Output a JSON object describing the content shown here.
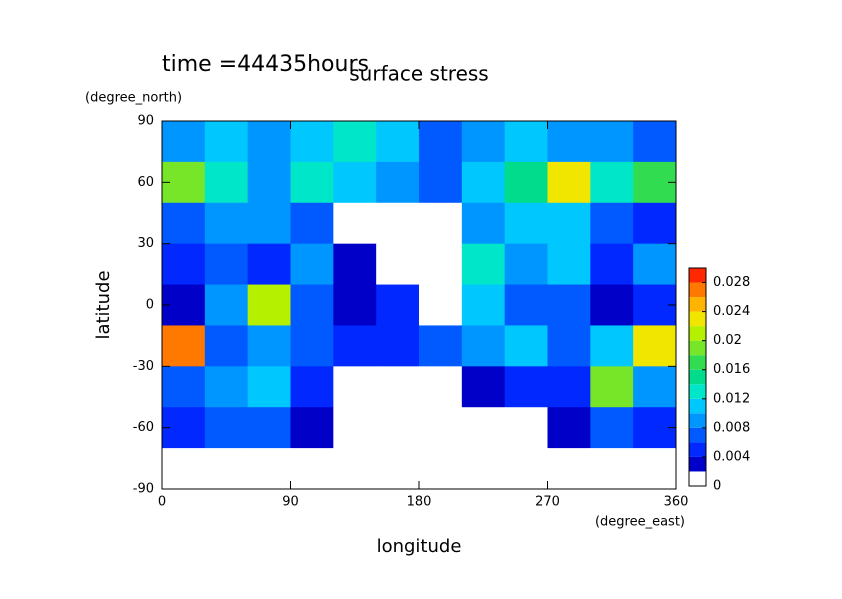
{
  "chart_data": {
    "type": "contour",
    "time_label": "time =44435hours",
    "title": "surface stress",
    "y_unit": "(degree_north)",
    "x_unit": "(degree_east)",
    "xlabel": "longitude",
    "ylabel": "latitude",
    "xlim": [
      0,
      360
    ],
    "ylim": [
      -90,
      90
    ],
    "xticks": [
      0,
      90,
      180,
      270,
      360
    ],
    "yticks": [
      -90,
      -60,
      -30,
      0,
      30,
      60,
      90
    ],
    "x": [
      15,
      45,
      75,
      105,
      135,
      165,
      195,
      225,
      255,
      285,
      315,
      345
    ],
    "y": [
      80,
      60,
      40,
      20,
      0,
      -20,
      -40,
      -60,
      -80
    ],
    "z": [
      [
        0.008,
        0.01,
        0.008,
        0.01,
        0.012,
        0.01,
        0.006,
        0.008,
        0.01,
        0.008,
        0.008,
        0.006
      ],
      [
        0.018,
        0.012,
        0.008,
        0.012,
        0.01,
        0.008,
        0.006,
        0.01,
        0.014,
        0.022,
        0.012,
        0.016
      ],
      [
        0.006,
        0.008,
        0.008,
        0.006,
        0,
        0,
        0,
        0.008,
        0.01,
        0.01,
        0.006,
        0.004
      ],
      [
        0.004,
        0.006,
        0.004,
        0.008,
        0.002,
        0,
        0,
        0.012,
        0.008,
        0.01,
        0.004,
        0.008
      ],
      [
        0.002,
        0.008,
        0.02,
        0.006,
        0.002,
        0.004,
        0,
        0.01,
        0.006,
        0.006,
        0.002,
        0.004
      ],
      [
        0.026,
        0.006,
        0.008,
        0.006,
        0.004,
        0.004,
        0.006,
        0.008,
        0.01,
        0.006,
        0.01,
        0.022
      ],
      [
        0.006,
        0.008,
        0.01,
        0.004,
        0,
        0,
        0,
        0.002,
        0.004,
        0.004,
        0.018,
        0.008
      ],
      [
        0.004,
        0.006,
        0.006,
        0.002,
        0,
        0,
        0,
        0,
        0,
        0.002,
        0.006,
        0.004
      ],
      [
        0,
        0,
        0,
        0,
        0,
        0,
        0,
        0,
        0,
        0,
        0,
        0
      ]
    ],
    "levels": [
      0,
      0.002,
      0.004,
      0.006,
      0.008,
      0.01,
      0.012,
      0.014,
      0.016,
      0.018,
      0.02,
      0.022,
      0.024,
      0.026,
      0.028,
      0.03
    ],
    "colors": [
      "#ffffff",
      "#0000c8",
      "#0028ff",
      "#005aff",
      "#0096ff",
      "#00c8ff",
      "#00e6c8",
      "#00dc8c",
      "#32dc50",
      "#78e628",
      "#b4f000",
      "#f0e600",
      "#ffb400",
      "#ff7800",
      "#ff2800"
    ],
    "colorbar_ticks": [
      0,
      0.004,
      0.008,
      0.012,
      0.016,
      0.02,
      0.024,
      0.028
    ]
  }
}
